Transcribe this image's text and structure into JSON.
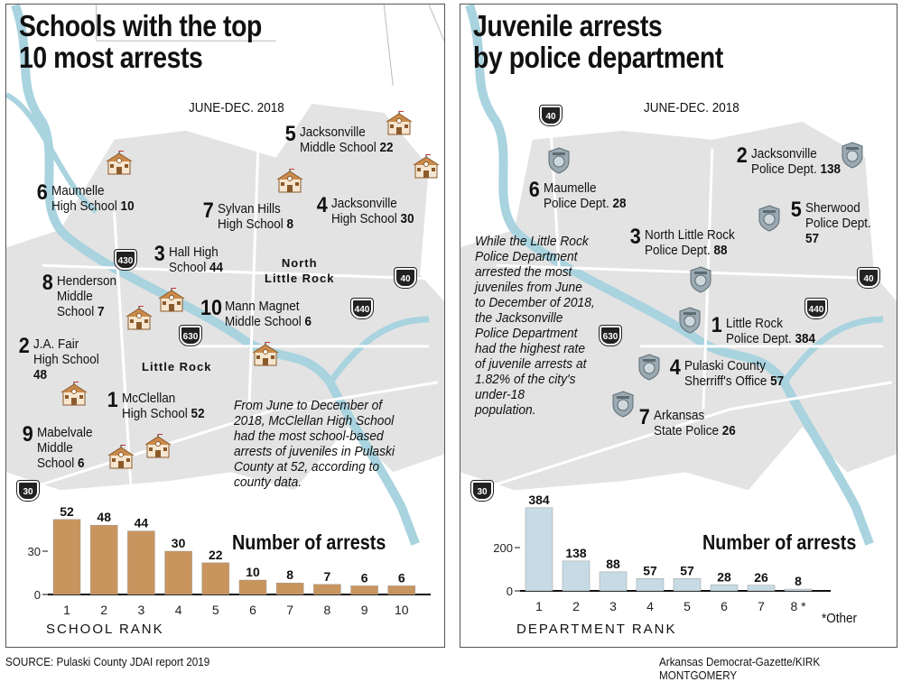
{
  "left": {
    "title": "Schools with the top\n10 most arrests",
    "date": "JUNE-DEC. 2018",
    "labels": [
      {
        "rank": "5",
        "name": "Jacksonville\nMiddle School ",
        "value": "22"
      },
      {
        "rank": "6",
        "name": "Maumelle\nHigh School ",
        "value": "10"
      },
      {
        "rank": "7",
        "name": "Sylvan Hills\nHigh School ",
        "value": "8"
      },
      {
        "rank": "4",
        "name": "Jacksonville\nHigh School ",
        "value": "30"
      },
      {
        "rank": "3",
        "name": "Hall High\nSchool ",
        "value": "44"
      },
      {
        "rank": "8",
        "name": "Henderson\nMiddle\nSchool ",
        "value": "7"
      },
      {
        "rank": "10",
        "name": "Mann Magnet\nMiddle School ",
        "value": "6"
      },
      {
        "rank": "2",
        "name": "J.A. Fair\nHigh School\n",
        "value": "48"
      },
      {
        "rank": "1",
        "name": "McClellan\nHigh School ",
        "value": "52"
      },
      {
        "rank": "9",
        "name": "Mabelvale\nMiddle\nSchool ",
        "value": "6"
      }
    ],
    "cities": [
      "North\nLittle Rock",
      "Little Rock"
    ],
    "highways": [
      "430",
      "630",
      "440",
      "40",
      "30"
    ],
    "note": "From June to December of\n2018, McClellan High School\nhad the most school-based\narrests of juveniles in Pulaski\nCounty at 52, according to\ncounty data.",
    "icon": "school-house-icon"
  },
  "right": {
    "title": "Juvenile arrests\nby police department",
    "date": "JUNE-DEC. 2018",
    "labels": [
      {
        "rank": "2",
        "name": "Jacksonville\nPolice Dept. ",
        "value": "138"
      },
      {
        "rank": "6",
        "name": "Maumelle\nPolice Dept. ",
        "value": "28"
      },
      {
        "rank": "5",
        "name": "Sherwood\nPolice Dept. ",
        "value": "57"
      },
      {
        "rank": "3",
        "name": "North Little  Rock\nPolice Dept. ",
        "value": "88"
      },
      {
        "rank": "1",
        "name": "Little Rock\nPolice Dept. ",
        "value": "384"
      },
      {
        "rank": "4",
        "name": "Pulaski County\nSherriff's Office ",
        "value": "57"
      },
      {
        "rank": "7",
        "name": "Arkansas\nState Police ",
        "value": "26"
      }
    ],
    "highways": [
      "40",
      "630",
      "440",
      "40",
      "30"
    ],
    "note": "While the Little Rock\nPolice Department\narrested the most\njuveniles from June\nto December of 2018,\nthe Jacksonville\nPolice Department\nhad the highest rate\nof juvenile arrests at\n1.82% of the city's\nunder-18\npopulation.",
    "footnote": "*Other",
    "icon": "police-badge-icon"
  },
  "chart_data": [
    {
      "type": "bar",
      "title": "Number of arrests",
      "xlabel": "SCHOOL RANK",
      "ylabel": "",
      "categories": [
        "1",
        "2",
        "3",
        "4",
        "5",
        "6",
        "7",
        "8",
        "9",
        "10"
      ],
      "values": [
        52,
        48,
        44,
        30,
        22,
        10,
        8,
        7,
        6,
        6
      ],
      "yticks": [
        0,
        30
      ],
      "ylim": [
        0,
        55
      ],
      "grid": false,
      "color": "#c9955e"
    },
    {
      "type": "bar",
      "title": "Number of arrests",
      "xlabel": "DEPARTMENT RANK",
      "ylabel": "",
      "categories": [
        "1",
        "2",
        "3",
        "4",
        "5",
        "6",
        "7",
        "8 *"
      ],
      "values": [
        384,
        138,
        88,
        57,
        57,
        28,
        26,
        8
      ],
      "yticks": [
        0,
        200
      ],
      "ylim": [
        0,
        400
      ],
      "grid": false,
      "color": "#c6dbe4"
    }
  ],
  "footer": {
    "source": "SOURCE: Pulaski County JDAI report 2019",
    "credit": "Arkansas Democrat-Gazette/KIRK MONTGOMERY"
  },
  "colors": {
    "land": "#e3e3e3",
    "water": "#a8d3df",
    "roads": "#ffffff"
  }
}
